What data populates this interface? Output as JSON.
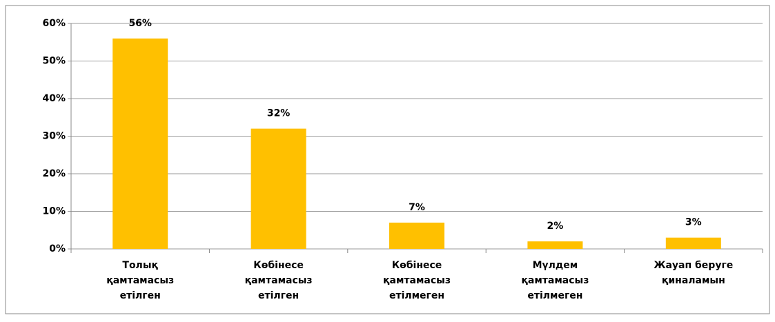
{
  "chart_data": {
    "type": "bar",
    "categories": [
      "Толық\nқамтамасыз\nетілген",
      "Көбінесе\nқамтамасыз\nетілген",
      "Көбінесе\nқамтамасыз\nетілмеген",
      "Мүлдем\nқамтамасыз\nетілмеген",
      "Жауап беруге\nқиналамын"
    ],
    "values": [
      56,
      32,
      7,
      2,
      3
    ],
    "value_labels": [
      "56%",
      "32%",
      "7%",
      "2%",
      "3%"
    ],
    "color": "#ffc000",
    "ylim": [
      0,
      60
    ],
    "yticks": [
      {
        "value": 0,
        "label": "0%"
      },
      {
        "value": 10,
        "label": "10%"
      },
      {
        "value": 20,
        "label": "20%"
      },
      {
        "value": 30,
        "label": "30%"
      },
      {
        "value": 40,
        "label": "40%"
      },
      {
        "value": 50,
        "label": "50%"
      },
      {
        "value": 60,
        "label": "60%"
      }
    ],
    "grid": true
  }
}
